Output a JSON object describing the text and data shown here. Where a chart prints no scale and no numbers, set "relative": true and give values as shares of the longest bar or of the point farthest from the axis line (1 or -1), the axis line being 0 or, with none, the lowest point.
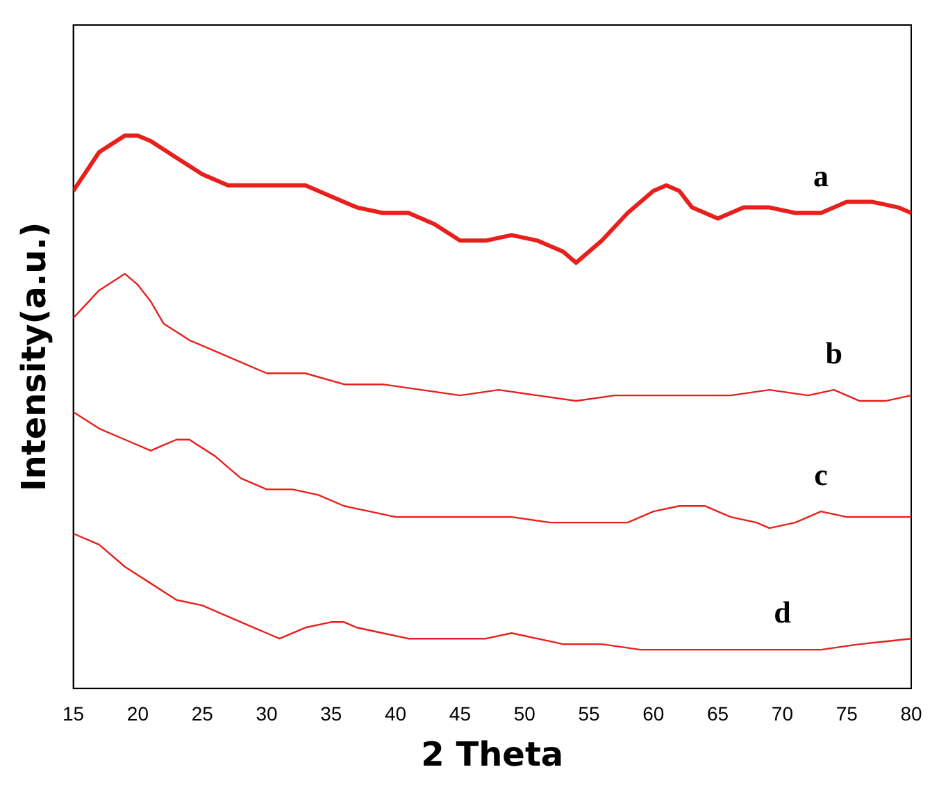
{
  "chart_data": {
    "type": "line",
    "xlabel": "2 Theta",
    "ylabel": "Intensity(a.u.)",
    "relative": true,
    "xlim": [
      15,
      80
    ],
    "xticks": [
      15,
      20,
      25,
      30,
      35,
      40,
      45,
      50,
      55,
      60,
      65,
      70,
      75,
      80
    ],
    "grid": false,
    "legend": false,
    "marker": "none",
    "line_style": "solid",
    "series": [
      {
        "name": "a",
        "color": "#e8201c",
        "x": [
          15,
          17,
          19,
          20,
          21,
          23,
          25,
          27,
          29,
          31,
          33,
          35,
          37,
          39,
          41,
          43,
          45,
          47,
          49,
          51,
          53,
          54,
          56,
          58,
          60,
          61,
          62,
          63,
          64,
          65,
          67,
          69,
          71,
          73,
          75,
          77,
          79,
          80
        ],
        "values": [
          0.9,
          0.97,
          1.0,
          1.0,
          0.99,
          0.96,
          0.93,
          0.91,
          0.91,
          0.91,
          0.91,
          0.89,
          0.87,
          0.86,
          0.86,
          0.84,
          0.81,
          0.81,
          0.82,
          0.81,
          0.79,
          0.77,
          0.81,
          0.86,
          0.9,
          0.91,
          0.9,
          0.87,
          0.86,
          0.85,
          0.87,
          0.87,
          0.86,
          0.86,
          0.88,
          0.88,
          0.87,
          0.86
        ]
      },
      {
        "name": "b",
        "color": "#e8201c",
        "x": [
          15,
          17,
          19,
          20,
          21,
          22,
          24,
          26,
          28,
          30,
          33,
          36,
          39,
          42,
          45,
          48,
          51,
          54,
          57,
          60,
          63,
          66,
          69,
          72,
          74,
          76,
          78,
          80
        ],
        "values": [
          0.67,
          0.72,
          0.75,
          0.73,
          0.7,
          0.66,
          0.63,
          0.61,
          0.59,
          0.57,
          0.57,
          0.55,
          0.55,
          0.54,
          0.53,
          0.54,
          0.53,
          0.52,
          0.53,
          0.53,
          0.53,
          0.53,
          0.54,
          0.53,
          0.54,
          0.52,
          0.52,
          0.53
        ]
      },
      {
        "name": "c",
        "color": "#e8201c",
        "x": [
          15,
          17,
          19,
          21,
          22,
          23,
          24,
          26,
          28,
          30,
          32,
          34,
          36,
          38,
          40,
          43,
          46,
          49,
          52,
          55,
          58,
          60,
          62,
          64,
          66,
          68,
          69,
          71,
          73,
          75,
          78,
          80
        ],
        "values": [
          0.5,
          0.47,
          0.45,
          0.43,
          0.44,
          0.45,
          0.45,
          0.42,
          0.38,
          0.36,
          0.36,
          0.35,
          0.33,
          0.32,
          0.31,
          0.31,
          0.31,
          0.31,
          0.3,
          0.3,
          0.3,
          0.32,
          0.33,
          0.33,
          0.31,
          0.3,
          0.29,
          0.3,
          0.32,
          0.31,
          0.31,
          0.31
        ]
      },
      {
        "name": "d",
        "color": "#e8201c",
        "x": [
          15,
          17,
          19,
          21,
          23,
          25,
          27,
          29,
          30,
          31,
          33,
          35,
          36,
          37,
          39,
          41,
          43,
          45,
          47,
          49,
          51,
          53,
          56,
          59,
          62,
          65,
          68,
          70,
          73,
          76,
          80
        ],
        "values": [
          0.28,
          0.26,
          0.22,
          0.19,
          0.16,
          0.15,
          0.13,
          0.11,
          0.1,
          0.09,
          0.11,
          0.12,
          0.12,
          0.11,
          0.1,
          0.09,
          0.09,
          0.09,
          0.09,
          0.1,
          0.09,
          0.08,
          0.08,
          0.07,
          0.07,
          0.07,
          0.07,
          0.07,
          0.07,
          0.08,
          0.09
        ]
      }
    ]
  }
}
